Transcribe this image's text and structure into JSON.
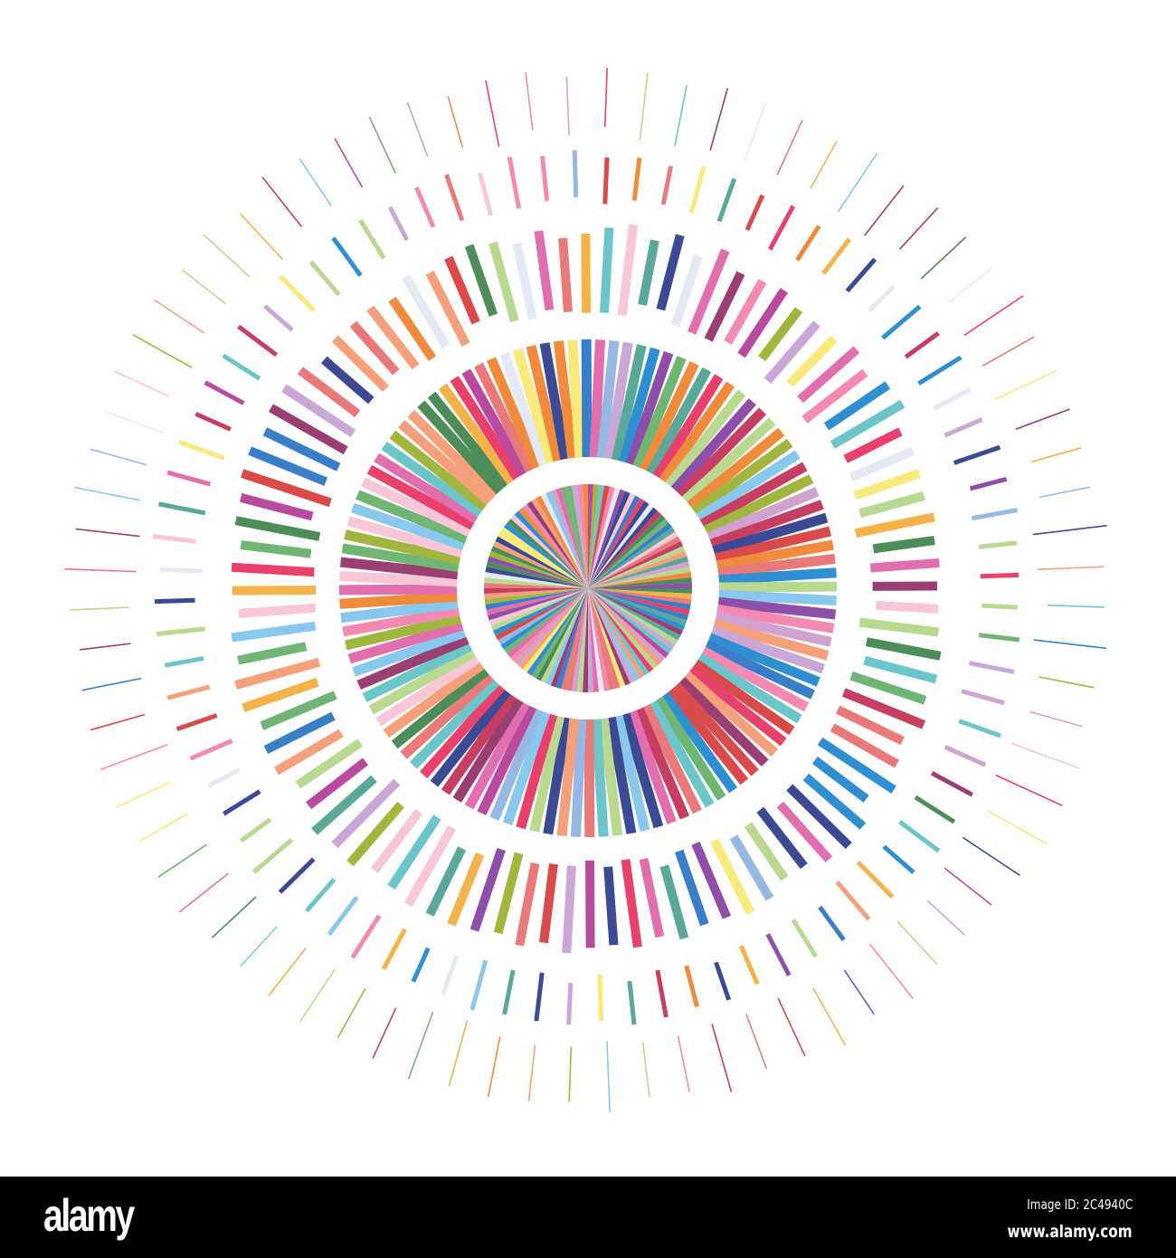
{
  "palette": [
    "#e8416b",
    "#3a7ec7",
    "#4e8c5a",
    "#8e4fa8",
    "#f4a07a",
    "#c9a8d8",
    "#f7e97a",
    "#6cc6c9",
    "#f28ab2",
    "#b8d98f",
    "#d94a4a",
    "#f08a3c",
    "#3b4a93",
    "#97b8e3",
    "#e16fae",
    "#a0b63f",
    "#2f8fd1",
    "#e3eaf6",
    "#c63f62",
    "#71b574",
    "#f9c6d8",
    "#5aa89a",
    "#b94b9e",
    "#f3b34a",
    "#88c8ec",
    "#9a3f72",
    "#e97a7a",
    "#d0a3cf"
  ],
  "watermark": {
    "logo": "alamy",
    "image_id": "Image ID: 2C4940C",
    "url": "www.alamy.com"
  }
}
